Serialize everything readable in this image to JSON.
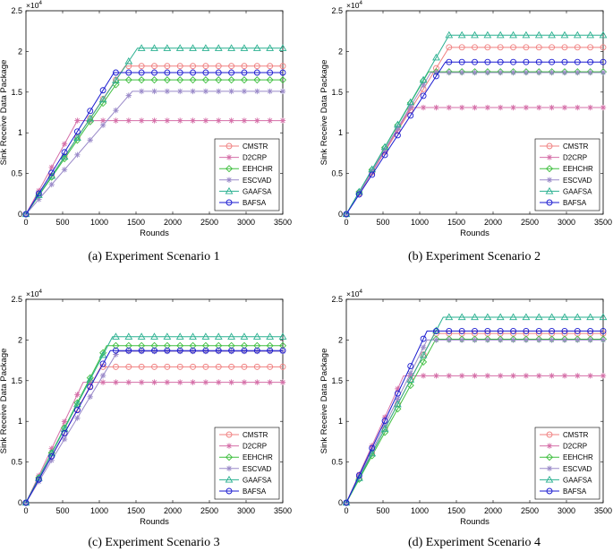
{
  "chart_data": [
    {
      "type": "line",
      "caption": "(a)  Experiment Scenario 1",
      "xlabel": "Rounds",
      "ylabel": "Sink Receive Data Package",
      "exponent_label": "×10",
      "exponent_power": "4",
      "xlim": [
        0,
        3500
      ],
      "ylim": [
        0,
        2.5
      ],
      "xticks": [
        "0",
        "500",
        "1000",
        "1500",
        "2000",
        "2500",
        "3000",
        "3500"
      ],
      "yticks": [
        "0",
        "0.5",
        "1",
        "1.5",
        "2",
        "2.5"
      ],
      "legend_position": "bottom-right",
      "series": [
        {
          "name": "CMSTR",
          "color": "#f08080",
          "marker": "circle",
          "end_x": 1350,
          "plateau": 1.82
        },
        {
          "name": "D2CRP",
          "color": "#d56fa8",
          "marker": "star",
          "end_x": 700,
          "plateau": 1.15
        },
        {
          "name": "EEHCHR",
          "color": "#3fbf3f",
          "marker": "diamond",
          "end_x": 1270,
          "plateau": 1.65
        },
        {
          "name": "ESCVAD",
          "color": "#9a8ac9",
          "marker": "star",
          "end_x": 1450,
          "plateau": 1.51
        },
        {
          "name": "GAAFSA",
          "color": "#2ab090",
          "marker": "triangle",
          "end_x": 1520,
          "plateau": 2.04
        },
        {
          "name": "BAFSA",
          "color": "#1a1ad0",
          "marker": "circle",
          "end_x": 1200,
          "plateau": 1.74
        }
      ]
    },
    {
      "type": "line",
      "caption": "(b)  Experiment Scenario 2",
      "xlabel": "Rounds",
      "ylabel": "Sink Receive Data Package",
      "exponent_label": "×10",
      "exponent_power": "4",
      "xlim": [
        0,
        3500
      ],
      "ylim": [
        0,
        2.5
      ],
      "xticks": [
        "0",
        "500",
        "1000",
        "1500",
        "2000",
        "2500",
        "3000",
        "3500"
      ],
      "yticks": [
        "0",
        "0.5",
        "1",
        "1.5",
        "2",
        "2.5"
      ],
      "legend_position": "bottom-right",
      "series": [
        {
          "name": "CMSTR",
          "color": "#f08080",
          "marker": "circle",
          "end_x": 1400,
          "plateau": 2.05
        },
        {
          "name": "D2CRP",
          "color": "#d56fa8",
          "marker": "star",
          "end_x": 880,
          "plateau": 1.31
        },
        {
          "name": "EEHCHR",
          "color": "#3fbf3f",
          "marker": "diamond",
          "end_x": 1120,
          "plateau": 1.75
        },
        {
          "name": "ESCVAD",
          "color": "#9a8ac9",
          "marker": "star",
          "end_x": 1150,
          "plateau": 1.74
        },
        {
          "name": "GAAFSA",
          "color": "#2ab090",
          "marker": "triangle",
          "end_x": 1400,
          "plateau": 2.2
        },
        {
          "name": "BAFSA",
          "color": "#1a1ad0",
          "marker": "circle",
          "end_x": 1350,
          "plateau": 1.87
        }
      ]
    },
    {
      "type": "line",
      "caption": "(c)  Experiment Scenario 3",
      "xlabel": "Rounds",
      "ylabel": "Sink Receive Data Package",
      "exponent_label": "×10",
      "exponent_power": "4",
      "xlim": [
        0,
        3500
      ],
      "ylim": [
        0,
        2.5
      ],
      "xticks": [
        "0",
        "500",
        "1000",
        "1500",
        "2000",
        "2500",
        "3000",
        "3500"
      ],
      "yticks": [
        "0",
        "0.5",
        "1",
        "1.5",
        "2",
        "2.5"
      ],
      "legend_position": "bottom-right",
      "series": [
        {
          "name": "CMSTR",
          "color": "#f08080",
          "marker": "circle",
          "end_x": 1020,
          "plateau": 1.67
        },
        {
          "name": "D2CRP",
          "color": "#d56fa8",
          "marker": "star",
          "end_x": 780,
          "plateau": 1.48
        },
        {
          "name": "EEHCHR",
          "color": "#3fbf3f",
          "marker": "diamond",
          "end_x": 1100,
          "plateau": 1.93
        },
        {
          "name": "ESCVAD",
          "color": "#9a8ac9",
          "marker": "star",
          "end_x": 1250,
          "plateau": 1.86
        },
        {
          "name": "GAAFSA",
          "color": "#2ab090",
          "marker": "triangle",
          "end_x": 1180,
          "plateau": 2.04
        },
        {
          "name": "BAFSA",
          "color": "#1a1ad0",
          "marker": "circle",
          "end_x": 1150,
          "plateau": 1.87
        }
      ]
    },
    {
      "type": "line",
      "caption": "(d)  Experiment Scenario 4",
      "xlabel": "Rounds",
      "ylabel": "Sink Receive Data Package",
      "exponent_label": "×10",
      "exponent_power": "4",
      "xlim": [
        0,
        3500
      ],
      "ylim": [
        0,
        2.5
      ],
      "xticks": [
        "0",
        "500",
        "1000",
        "1500",
        "2000",
        "2500",
        "3000",
        "3500"
      ],
      "yticks": [
        "0",
        "0.5",
        "1",
        "1.5",
        "2",
        "2.5"
      ],
      "legend_position": "bottom-right",
      "series": [
        {
          "name": "CMSTR",
          "color": "#f08080",
          "marker": "circle",
          "end_x": 1200,
          "plateau": 2.08
        },
        {
          "name": "D2CRP",
          "color": "#d56fa8",
          "marker": "star",
          "end_x": 780,
          "plateau": 1.56
        },
        {
          "name": "EEHCHR",
          "color": "#3fbf3f",
          "marker": "diamond",
          "end_x": 1220,
          "plateau": 2.01
        },
        {
          "name": "ESCVAD",
          "color": "#9a8ac9",
          "marker": "star",
          "end_x": 1100,
          "plateau": 2.0
        },
        {
          "name": "GAAFSA",
          "color": "#2ab090",
          "marker": "triangle",
          "end_x": 1320,
          "plateau": 2.28
        },
        {
          "name": "BAFSA",
          "color": "#1a1ad0",
          "marker": "circle",
          "end_x": 1100,
          "plateau": 2.11
        }
      ]
    }
  ]
}
